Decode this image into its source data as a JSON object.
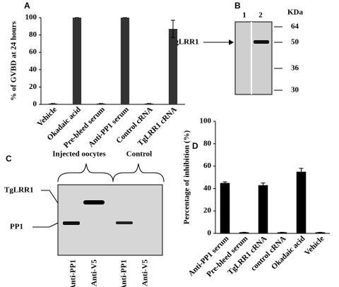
{
  "chart_data": [
    {
      "type": "bar",
      "panel_label": "A",
      "ylabel": "% of GVBD at 24 hours",
      "categories": [
        "Vehicle",
        "Okadaic acid",
        "Pre-bleed serum",
        "Anti-PP1 serum",
        "Control cRNA",
        "TgLRR1 cRNA"
      ],
      "values": [
        1,
        100,
        1,
        100,
        1,
        87
      ],
      "errors": [
        0,
        0,
        0,
        0,
        0,
        10
      ],
      "color": "#333333",
      "ylim": [
        0,
        100
      ],
      "yticks": [
        0,
        20,
        40,
        60,
        80,
        100
      ],
      "grid": false
    },
    {
      "type": "bar",
      "panel_label": "D",
      "ylabel": "Percentage of inhibition (%)",
      "categories": [
        "Anti-PP1 serum",
        "Pre-bleed serum",
        "TgLRR1 cRNA",
        "control cRNA",
        "Okadaic acid",
        "Vehicle"
      ],
      "values": [
        45,
        1,
        43,
        1,
        55,
        1
      ],
      "errors": [
        1,
        0,
        2,
        0,
        3,
        0
      ],
      "color": "#000000",
      "ylim": [
        0,
        100
      ],
      "yticks": [
        0,
        20,
        40,
        60,
        80,
        100
      ],
      "grid": false
    }
  ],
  "blots": [
    {
      "panel_label": "B",
      "lanes": [
        "1",
        "2"
      ],
      "unit": "KDa",
      "markers": [
        "64",
        "50",
        "36",
        "30"
      ],
      "band_label": "TgLRR1"
    },
    {
      "panel_label": "C",
      "groups": [
        "Injected oocytes",
        "Control"
      ],
      "bands": [
        "TgLRR1",
        "PP1"
      ],
      "lanes": [
        "Anti-PP1",
        "Anti-V5",
        "Anti-PP1",
        "Anti-V5"
      ]
    }
  ]
}
